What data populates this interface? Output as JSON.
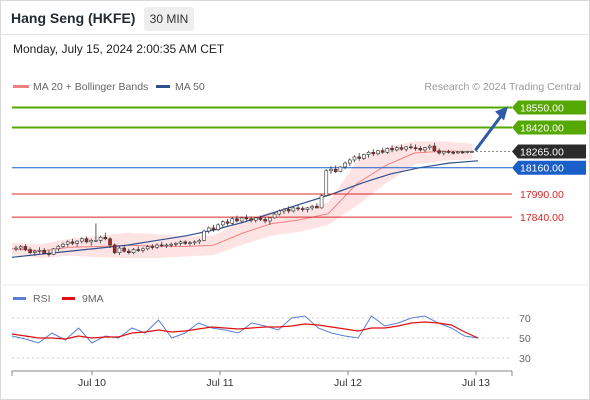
{
  "header": {
    "title": "Hang Seng (HKFE)",
    "timeframe": "30 MIN",
    "datetime": "Monday, July 15, 2024 2:00:35 AM CET"
  },
  "legend": {
    "ma20": "MA 20 + Bollinger Bands",
    "ma50": "MA 50",
    "credit": "Research © 2024 Trading Central",
    "rsi": "RSI",
    "rsi_ma": "9MA"
  },
  "colors": {
    "ma20": "#f08080",
    "band_fill": "#fde3e3",
    "ma50": "#2f4f8f",
    "up_candle": "#ffffff",
    "down_candle": "#b22222",
    "green_level": "#55a800",
    "red_level": "#d62828",
    "blue_level": "#1a5fc8",
    "current": "#2b2b2b",
    "arrow": "#2f5aa8",
    "rsi": "#5b7fd6",
    "rsi_ma": "#e01010"
  },
  "chart_data": [
    {
      "type": "line",
      "title": "Hang Seng (HKFE)",
      "subtitle": "30 MIN",
      "x_ticks": [
        "Jul 10",
        "Jul 11",
        "Jul 12",
        "Jul 13"
      ],
      "y_range": [
        17485,
        18650
      ],
      "levels": [
        {
          "label": "18550.00",
          "value": 18550,
          "kind": "resistance"
        },
        {
          "label": "18420.00",
          "value": 18420,
          "kind": "resistance"
        },
        {
          "label": "18265.00",
          "value": 18265,
          "kind": "current"
        },
        {
          "label": "18160.00",
          "value": 18160,
          "kind": "pivot"
        },
        {
          "label": "17990.00",
          "value": 17990,
          "kind": "support"
        },
        {
          "label": "17840.00",
          "value": 17840,
          "kind": "support"
        }
      ],
      "candles": [
        [
          17635,
          17655,
          17620,
          17640
        ],
        [
          17640,
          17660,
          17625,
          17650
        ],
        [
          17650,
          17665,
          17620,
          17630
        ],
        [
          17630,
          17645,
          17600,
          17610
        ],
        [
          17610,
          17630,
          17590,
          17620
        ],
        [
          17620,
          17645,
          17605,
          17625
        ],
        [
          17625,
          17640,
          17600,
          17605
        ],
        [
          17605,
          17625,
          17585,
          17600
        ],
        [
          17600,
          17640,
          17595,
          17635
        ],
        [
          17635,
          17660,
          17620,
          17650
        ],
        [
          17650,
          17675,
          17640,
          17665
        ],
        [
          17665,
          17690,
          17650,
          17680
        ],
        [
          17680,
          17700,
          17660,
          17670
        ],
        [
          17670,
          17690,
          17650,
          17685
        ],
        [
          17685,
          17710,
          17670,
          17700
        ],
        [
          17700,
          17715,
          17670,
          17680
        ],
        [
          17680,
          17700,
          17655,
          17690
        ],
        [
          17690,
          17800,
          17680,
          17690
        ],
        [
          17690,
          17720,
          17670,
          17710
        ],
        [
          17710,
          17740,
          17690,
          17700
        ],
        [
          17700,
          17710,
          17640,
          17660
        ],
        [
          17660,
          17670,
          17600,
          17610
        ],
        [
          17610,
          17650,
          17595,
          17640
        ],
        [
          17640,
          17660,
          17610,
          17620
        ],
        [
          17620,
          17635,
          17600,
          17610
        ],
        [
          17610,
          17640,
          17600,
          17630
        ],
        [
          17630,
          17650,
          17615,
          17625
        ],
        [
          17625,
          17645,
          17610,
          17635
        ],
        [
          17635,
          17660,
          17625,
          17650
        ],
        [
          17650,
          17665,
          17630,
          17645
        ],
        [
          17645,
          17670,
          17635,
          17660
        ],
        [
          17660,
          17680,
          17645,
          17655
        ],
        [
          17655,
          17670,
          17640,
          17660
        ],
        [
          17660,
          17675,
          17645,
          17665
        ],
        [
          17665,
          17680,
          17650,
          17670
        ],
        [
          17670,
          17690,
          17655,
          17680
        ],
        [
          17680,
          17690,
          17660,
          17670
        ],
        [
          17670,
          17685,
          17655,
          17675
        ],
        [
          17675,
          17690,
          17660,
          17680
        ],
        [
          17680,
          17700,
          17665,
          17690
        ],
        [
          17690,
          17760,
          17685,
          17750
        ],
        [
          17750,
          17780,
          17735,
          17770
        ],
        [
          17770,
          17790,
          17745,
          17760
        ],
        [
          17760,
          17800,
          17750,
          17790
        ],
        [
          17790,
          17820,
          17770,
          17810
        ],
        [
          17810,
          17830,
          17785,
          17800
        ],
        [
          17800,
          17840,
          17790,
          17830
        ],
        [
          17830,
          17850,
          17805,
          17815
        ],
        [
          17815,
          17840,
          17800,
          17835
        ],
        [
          17835,
          17855,
          17815,
          17830
        ],
        [
          17830,
          17845,
          17805,
          17820
        ],
        [
          17820,
          17840,
          17805,
          17835
        ],
        [
          17835,
          17850,
          17815,
          17825
        ],
        [
          17825,
          17840,
          17800,
          17815
        ],
        [
          17815,
          17830,
          17790,
          17835
        ],
        [
          17835,
          17870,
          17830,
          17860
        ],
        [
          17860,
          17890,
          17850,
          17880
        ],
        [
          17880,
          17900,
          17860,
          17890
        ],
        [
          17890,
          17910,
          17865,
          17880
        ],
        [
          17880,
          17905,
          17870,
          17900
        ],
        [
          17900,
          17915,
          17880,
          17895
        ],
        [
          17895,
          17910,
          17875,
          17890
        ],
        [
          17890,
          17905,
          17870,
          17900
        ],
        [
          17900,
          17920,
          17885,
          17910
        ],
        [
          17910,
          17930,
          17895,
          17900
        ],
        [
          17900,
          17990,
          17895,
          17980
        ],
        [
          17980,
          18150,
          17975,
          18140
        ],
        [
          18140,
          18170,
          18120,
          18150
        ],
        [
          18150,
          18175,
          18125,
          18135
        ],
        [
          18135,
          18170,
          18130,
          18165
        ],
        [
          18165,
          18200,
          18150,
          18190
        ],
        [
          18190,
          18220,
          18170,
          18210
        ],
        [
          18210,
          18240,
          18195,
          18230
        ],
        [
          18230,
          18255,
          18205,
          18220
        ],
        [
          18220,
          18250,
          18210,
          18245
        ],
        [
          18245,
          18270,
          18225,
          18260
        ],
        [
          18260,
          18280,
          18235,
          18250
        ],
        [
          18250,
          18275,
          18240,
          18270
        ],
        [
          18270,
          18290,
          18250,
          18260
        ],
        [
          18260,
          18290,
          18250,
          18285
        ],
        [
          18285,
          18305,
          18260,
          18275
        ],
        [
          18275,
          18300,
          18265,
          18290
        ],
        [
          18290,
          18310,
          18270,
          18280
        ],
        [
          18280,
          18300,
          18265,
          18295
        ],
        [
          18295,
          18315,
          18280,
          18290
        ],
        [
          18290,
          18310,
          18270,
          18285
        ],
        [
          18285,
          18300,
          18265,
          18275
        ],
        [
          18275,
          18295,
          18260,
          18290
        ],
        [
          18290,
          18310,
          18275,
          18300
        ],
        [
          18300,
          18320,
          18260,
          18270
        ],
        [
          18270,
          18285,
          18245,
          18255
        ],
        [
          18255,
          18270,
          18240,
          18265
        ],
        [
          18265,
          18275,
          18250,
          18260
        ],
        [
          18260,
          18270,
          18245,
          18258
        ],
        [
          18258,
          18268,
          18250,
          18262
        ],
        [
          18262,
          18270,
          18250,
          18260
        ],
        [
          18260,
          18270,
          18252,
          18265
        ],
        [
          18265,
          18272,
          18255,
          18265
        ]
      ],
      "ma50": [
        17580,
        17600,
        17620,
        17640,
        17660,
        17690,
        17720,
        17760,
        17810,
        17870,
        17930,
        17990,
        18060,
        18120,
        18160,
        18190,
        18205
      ],
      "bb_upper": [
        17675,
        17665,
        17700,
        17720,
        17740,
        17730,
        17715,
        17720,
        17810,
        17875,
        17900,
        17935,
        18200,
        18290,
        18330,
        18330,
        18315
      ],
      "bb_lower": [
        17595,
        17575,
        17590,
        17580,
        17575,
        17575,
        17585,
        17595,
        17660,
        17720,
        17745,
        17790,
        17915,
        18060,
        18180,
        18205,
        18215
      ],
      "rsi_ticks": [
        "70",
        "50",
        "30"
      ],
      "rsi_range": [
        20,
        80
      ],
      "rsi": [
        52,
        49,
        45,
        55,
        48,
        60,
        45,
        52,
        50,
        60,
        55,
        68,
        50,
        55,
        65,
        60,
        58,
        55,
        65,
        62,
        58,
        70,
        72,
        60,
        55,
        52,
        50,
        72,
        62,
        65,
        70,
        72,
        65,
        60,
        52,
        50
      ],
      "rsi_ma": [
        54,
        52,
        50,
        50,
        49,
        52,
        50,
        51,
        51,
        55,
        56,
        58,
        56,
        57,
        59,
        61,
        60,
        59,
        60,
        61,
        61,
        62,
        64,
        63,
        61,
        59,
        57,
        60,
        60,
        62,
        65,
        66,
        65,
        63,
        56,
        50
      ]
    }
  ]
}
